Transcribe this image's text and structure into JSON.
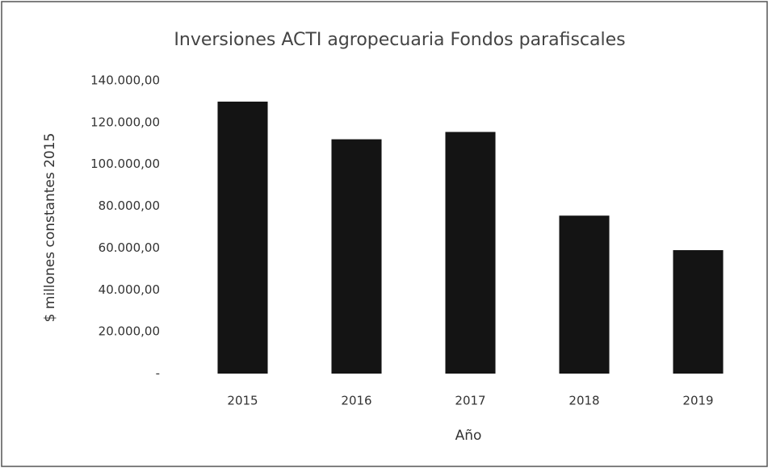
{
  "chart_data": {
    "type": "bar",
    "title": "Inversiones ACTI agropecuaria Fondos parafiscales",
    "x_label": "Año",
    "y_label": "$ millones constantes 2015",
    "categories": [
      "2015",
      "2016",
      "2017",
      "2018",
      "2019"
    ],
    "values": [
      130000,
      112000,
      115500,
      75500,
      59000
    ],
    "color": "#141414",
    "ylim": [
      0,
      140000
    ],
    "yticks": [
      {
        "value": 0,
        "label": "-"
      },
      {
        "value": 20000,
        "label": "20.000,00"
      },
      {
        "value": 40000,
        "label": "40.000,00"
      },
      {
        "value": 60000,
        "label": "60.000,00"
      },
      {
        "value": 80000,
        "label": "80.000,00"
      },
      {
        "value": 100000,
        "label": "100.000,00"
      },
      {
        "value": 120000,
        "label": "120.000,00"
      },
      {
        "value": 140000,
        "label": "140.000,00"
      }
    ],
    "grid": false
  }
}
